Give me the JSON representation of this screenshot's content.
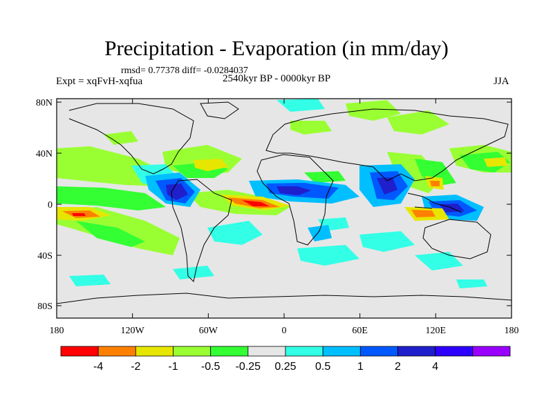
{
  "title": "Precipitation - Evaporation (in mm/day)",
  "stats": "rmsd= 0.77378  diff= -0.0284037",
  "experiment": "Expt = xqFvH-xqfua",
  "period": "2540kyr BP - 0000kyr BP",
  "season": "JJA",
  "axes": {
    "lon_ticks": [
      "180",
      "120W",
      "60W",
      "0",
      "60E",
      "120E",
      "180"
    ],
    "lat_ticks": [
      "80N",
      "40N",
      "0",
      "40S",
      "80S"
    ]
  },
  "colorbar": {
    "colors": [
      "#ff0000",
      "#ff8000",
      "#e6e600",
      "#99ff33",
      "#33ff33",
      "#e6e6e6",
      "#33ffe6",
      "#00bfff",
      "#0059ff",
      "#1f1fcc",
      "#2e00ff",
      "#9900ff"
    ],
    "labels": [
      "-4",
      "-2",
      "-1",
      "-0.5",
      "-0.25",
      "0.25",
      "0.5",
      "1",
      "2",
      "4"
    ]
  },
  "colors": {
    "background": "#e6e6e6",
    "coast": "#000000"
  }
}
